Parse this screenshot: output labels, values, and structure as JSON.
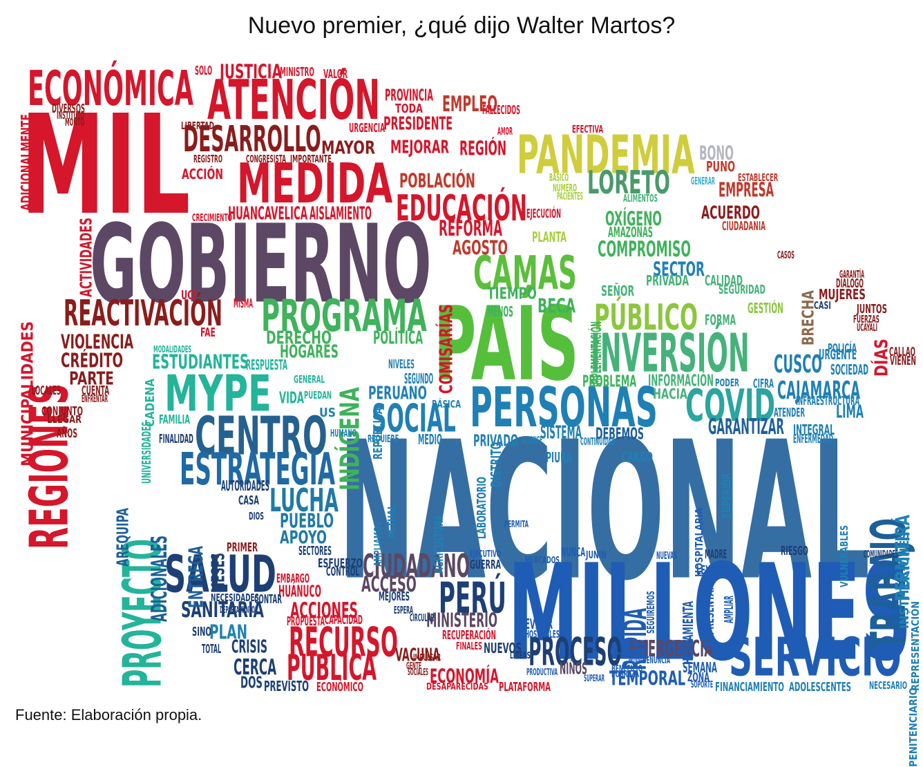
{
  "title": "Nuevo premier, ¿qué dijo Walter Martos?",
  "source": "Fuente: Elaboración propia.",
  "colors": {
    "red": "#d7142b",
    "darkred": "#8b1c1c",
    "purple": "#5b4763",
    "green": "#5bbf3b",
    "lime": "#a9cf3c",
    "olive": "#c9c93a",
    "teal": "#2bb89a",
    "blue": "#2f6ea8",
    "navy": "#1d3f75",
    "royal": "#1e5bb8"
  },
  "words": [
    {
      "t": "NACIONAL",
      "c": "#356ea3"
    },
    {
      "t": "MILLONES",
      "c": "#1f5cb5"
    },
    {
      "t": "GOBIERNO",
      "c": "#5c4764"
    },
    {
      "t": "MIL",
      "c": "#d5162b"
    },
    {
      "t": "PAÍS",
      "c": "#55bf3c"
    },
    {
      "t": "MEDIDA",
      "c": "#d5162b"
    },
    {
      "t": "ECONÓMICA",
      "c": "#d5162b"
    },
    {
      "t": "ATENCIÓN",
      "c": "#d5162b"
    },
    {
      "t": "PANDEMIA",
      "c": "#cfcd3c"
    },
    {
      "t": "PERSONAS",
      "c": "#1f80b5"
    },
    {
      "t": "INVERSIÓN",
      "c": "#45b27a"
    },
    {
      "t": "PROGRAMA",
      "c": "#3fb25b"
    },
    {
      "t": "MYPE",
      "c": "#23b49a"
    },
    {
      "t": "CENTRO",
      "c": "#24618f"
    },
    {
      "t": "ESTRATEGIA",
      "c": "#1f6aa5"
    },
    {
      "t": "SALUD",
      "c": "#1d3f75"
    },
    {
      "t": "SERVICIO",
      "c": "#1f5cb5"
    },
    {
      "t": "COVID",
      "c": "#2aa5a0"
    },
    {
      "t": "CAMAS",
      "c": "#5bbf3b"
    },
    {
      "t": "PÚBLICO",
      "c": "#8cc63f"
    },
    {
      "t": "REGIONES",
      "c": "#d5162b"
    },
    {
      "t": "DESARROLLO",
      "c": "#8b1c1c"
    },
    {
      "t": "EDUCACIÓN",
      "c": "#d5162b"
    },
    {
      "t": "REACTIVACIÓN",
      "c": "#8b1c1c"
    },
    {
      "t": "LORETO",
      "c": "#4a9a6b"
    },
    {
      "t": "SOCIAL",
      "c": "#1f80b5"
    },
    {
      "t": "PROYECTO",
      "c": "#23b49a"
    },
    {
      "t": "TRABAJO",
      "c": "#1d5f9a"
    },
    {
      "t": "PERÚ",
      "c": "#1d3f75"
    },
    {
      "t": "PROCESO",
      "c": "#1d3f75"
    },
    {
      "t": "RECURSO",
      "c": "#d5162b"
    },
    {
      "t": "PÚBLICA",
      "c": "#d5162b"
    },
    {
      "t": "LUCHA",
      "c": "#1f7aa5"
    },
    {
      "t": "CIUDADANO",
      "c": "#5c4764"
    },
    {
      "t": "CAJAMARCA",
      "c": "#1f80b5"
    },
    {
      "t": "EMERGENCIA",
      "c": "#5c4764"
    },
    {
      "t": "SANITARIA",
      "c": "#1d3f75"
    },
    {
      "t": "EMPRESA",
      "c": "#c0392b"
    },
    {
      "t": "CUSCO",
      "c": "#1f80b5"
    },
    {
      "t": "INDÍGENA",
      "c": "#3fb25b"
    },
    {
      "t": "PRESIDENTE",
      "c": "#d5162b"
    },
    {
      "t": "MAYOR",
      "c": "#8b1c1c"
    },
    {
      "t": "JUSTICIA",
      "c": "#d5162b"
    },
    {
      "t": "EMPLEO",
      "c": "#c0392b"
    },
    {
      "t": "POBLACIÓN",
      "c": "#c0392b"
    },
    {
      "t": "REFORMA",
      "c": "#d5162b"
    },
    {
      "t": "AGOSTO",
      "c": "#c0392b"
    },
    {
      "t": "COMISARÍAS",
      "c": "#d5162b"
    },
    {
      "t": "OXÍGENO",
      "c": "#3fb25b"
    },
    {
      "t": "COMPROMISO",
      "c": "#3fb25b"
    },
    {
      "t": "SECTOR",
      "c": "#1f80b5"
    },
    {
      "t": "BRECHA",
      "c": "#8a6a50"
    },
    {
      "t": "GARANTIZAR",
      "c": "#1d5f9a"
    },
    {
      "t": "LIMA",
      "c": "#1f80b5"
    },
    {
      "t": "PERMITIRÁ",
      "c": "#1f80b5"
    },
    {
      "t": "DERECHO",
      "c": "#3fb25b"
    },
    {
      "t": "HOGARES",
      "c": "#3fb25b"
    },
    {
      "t": "POLÍTICA",
      "c": "#3fb25b"
    },
    {
      "t": "ESTUDIANTES",
      "c": "#23b49a"
    },
    {
      "t": "PERUANO",
      "c": "#1f80b5"
    },
    {
      "t": "PUEBLO",
      "c": "#1f7aa5"
    },
    {
      "t": "APOYO",
      "c": "#1f7aa5"
    },
    {
      "t": "ENTREGA",
      "c": "#1d5f9a"
    },
    {
      "t": "MESES",
      "c": "#1d3f75"
    },
    {
      "t": "ADICIONALES",
      "c": "#1d5f9a"
    },
    {
      "t": "AREQUIPA",
      "c": "#1d5f9a"
    },
    {
      "t": "ACCIONES",
      "c": "#d5162b"
    },
    {
      "t": "HUÁNUCO",
      "c": "#d5162b"
    },
    {
      "t": "VACUNA",
      "c": "#8b1c1c"
    },
    {
      "t": "ECONOMÍA",
      "c": "#d5162b"
    },
    {
      "t": "MINISTERIO",
      "c": "#5c4764"
    },
    {
      "t": "ACCESO",
      "c": "#5c4764"
    },
    {
      "t": "RÁPIDA",
      "c": "#1f5cb5"
    },
    {
      "t": "TEMPORAL",
      "c": "#1f5cb5"
    },
    {
      "t": "NIÑOS",
      "c": "#5c4764"
    },
    {
      "t": "PLAN",
      "c": "#1f80b5"
    },
    {
      "t": "CRISIS",
      "c": "#1d3f75"
    },
    {
      "t": "CERCA",
      "c": "#1d3f75"
    },
    {
      "t": "VIOLENCIA",
      "c": "#8b1c1c"
    },
    {
      "t": "CRÉDITO",
      "c": "#8b1c1c"
    },
    {
      "t": "ACTIVIDADES",
      "c": "#d5162b"
    },
    {
      "t": "MUNICIPALIDADES",
      "c": "#d5162b"
    },
    {
      "t": "HUANCAVELICA",
      "c": "#d5162b"
    },
    {
      "t": "AISLAMIENTO",
      "c": "#d5162b"
    },
    {
      "t": "ACCIÓN",
      "c": "#d5162b"
    },
    {
      "t": "MEJORAR",
      "c": "#d5162b"
    },
    {
      "t": "REGIÓN",
      "c": "#d5162b"
    },
    {
      "t": "ADICIONALMENTE",
      "c": "#d5162b"
    },
    {
      "t": "BONO",
      "c": "#b6b6c0"
    },
    {
      "t": "PUNO",
      "c": "#c0392b"
    },
    {
      "t": "ACUERDO",
      "c": "#8b1c1c"
    },
    {
      "t": "BECA",
      "c": "#3fb25b"
    },
    {
      "t": "TIEMPO",
      "c": "#3fb25b"
    },
    {
      "t": "PLANTA",
      "c": "#a9cf3c"
    },
    {
      "t": "DÍAS",
      "c": "#d5162b"
    },
    {
      "t": "PARTE",
      "c": "#8b1c1c"
    },
    {
      "t": "PROBLEMA",
      "c": "#3fb25b"
    },
    {
      "t": "INFORMACIÓN",
      "c": "#45b27a"
    },
    {
      "t": "MUJERES",
      "c": "#8b1c1c"
    },
    {
      "t": "SISTEMA",
      "c": "#1f80b5"
    },
    {
      "t": "DEBEMOS",
      "c": "#1d5f9a"
    },
    {
      "t": "SEGURIDAD",
      "c": "#45b27a"
    },
    {
      "t": "GESTIÓN",
      "c": "#8cc63f"
    },
    {
      "t": "CALIDAD",
      "c": "#45b27a"
    },
    {
      "t": "PRIVADA",
      "c": "#45b27a"
    },
    {
      "t": "CIUDADANIA",
      "c": "#c0392b"
    },
    {
      "t": "AMAZONAS",
      "c": "#3fb25b"
    },
    {
      "t": "IMPLEMENTACIÓN",
      "c": "#3fb25b"
    },
    {
      "t": "HERRAMIENTA",
      "c": "#1f5cb5"
    },
    {
      "t": "INTEGRAL",
      "c": "#1f80b5"
    },
    {
      "t": "DOS",
      "c": "#1d3f75"
    },
    {
      "t": "PREVISTO",
      "c": "#1d3f75"
    },
    {
      "t": "ECONÓMICO",
      "c": "#d5162b"
    },
    {
      "t": "PLATAFORMA",
      "c": "#d5162b"
    },
    {
      "t": "NUEVOS",
      "c": "#1d3f75"
    },
    {
      "t": "EVITAR",
      "c": "#1f5cb5"
    },
    {
      "t": "FINANCIAMIENTO",
      "c": "#1f80b5"
    },
    {
      "t": "ADOLESCENTES",
      "c": "#1f80b5"
    },
    {
      "t": "SEMANA",
      "c": "#1f5cb5"
    },
    {
      "t": "ZONA",
      "c": "#1f5cb5"
    },
    {
      "t": "HACIA",
      "c": "#45b27a"
    },
    {
      "t": "FORMA",
      "c": "#45b27a"
    },
    {
      "t": "URGENTE",
      "c": "#1f80b5"
    },
    {
      "t": "SOCIEDAD",
      "c": "#1f80b5"
    },
    {
      "t": "INFRAESTRUCTURA",
      "c": "#1f80b5"
    },
    {
      "t": "FAMILIA",
      "c": "#23b49a"
    },
    {
      "t": "AUTORIDADES",
      "c": "#1d3f75"
    },
    {
      "t": "CASA",
      "c": "#1d3f75"
    },
    {
      "t": "PRIMER",
      "c": "#8b1c1c"
    },
    {
      "t": "CONTAR",
      "c": "#1d3f75"
    },
    {
      "t": "ESFUERZO",
      "c": "#1d3f75"
    },
    {
      "t": "CONTROL",
      "c": "#1d3f75"
    },
    {
      "t": "GUERRA",
      "c": "#1d3f75"
    },
    {
      "t": "MEJORES",
      "c": "#1d3f75"
    },
    {
      "t": "PROPUESTA",
      "c": "#d5162b"
    },
    {
      "t": "CAPACIDAD",
      "c": "#d5162b"
    },
    {
      "t": "EMBARGO",
      "c": "#d5162b"
    },
    {
      "t": "NECESIDADES",
      "c": "#1d3f75"
    },
    {
      "t": "TOTAL",
      "c": "#1d3f75"
    },
    {
      "t": "SINO",
      "c": "#1d3f75"
    },
    {
      "t": "CONJUNTO",
      "c": "#8b1c1c"
    },
    {
      "t": "LLEGAR",
      "c": "#8b1c1c"
    },
    {
      "t": "AÑOS",
      "c": "#8b1c1c"
    },
    {
      "t": "LOCALES",
      "c": "#8b1c1c"
    },
    {
      "t": "CUENTA",
      "c": "#8b1c1c"
    },
    {
      "t": "ENFRENTAR",
      "c": "#8b1c1c"
    },
    {
      "t": "MISMA",
      "c": "#d5162b"
    },
    {
      "t": "UCI",
      "c": "#d5162b"
    },
    {
      "t": "FAE",
      "c": "#d5162b"
    },
    {
      "t": "SOLO",
      "c": "#d5162b"
    },
    {
      "t": "MINISTRO",
      "c": "#d5162b"
    },
    {
      "t": "VALOR",
      "c": "#d5162b"
    },
    {
      "t": "PROVINCIA",
      "c": "#d5162b"
    },
    {
      "t": "TODA",
      "c": "#d5162b"
    },
    {
      "t": "URGENCIA",
      "c": "#d5162b"
    },
    {
      "t": "CRECIMIENTO",
      "c": "#d5162b"
    },
    {
      "t": "FALLECIDOS",
      "c": "#d5162b"
    },
    {
      "t": "CIFRA",
      "c": "#1f80b5"
    },
    {
      "t": "PODER",
      "c": "#1f80b5"
    },
    {
      "t": "RIESGO",
      "c": "#1d3f75"
    },
    {
      "t": "MADRE",
      "c": "#1d3f75"
    },
    {
      "t": "JUNTOS",
      "c": "#8b1c1c"
    },
    {
      "t": "CASOS",
      "c": "#8b1c1c"
    },
    {
      "t": "SEÑOR",
      "c": "#45b27a"
    },
    {
      "t": "MENOS",
      "c": "#3fb25b"
    },
    {
      "t": "PRIVADO",
      "c": "#1f80b5"
    },
    {
      "t": "MEDIO",
      "c": "#1f80b5"
    },
    {
      "t": "SEGUNDO",
      "c": "#1f80b5"
    },
    {
      "t": "NIVELES",
      "c": "#1f80b5"
    },
    {
      "t": "US",
      "c": "#1f80b5"
    },
    {
      "t": "VIDA",
      "c": "#23b49a"
    },
    {
      "t": "RESPUESTA",
      "c": "#23b49a"
    },
    {
      "t": "FINALIDAD",
      "c": "#1d3f75"
    },
    {
      "t": "DIOS",
      "c": "#1d3f75"
    },
    {
      "t": "SECTORES",
      "c": "#1d3f75"
    },
    {
      "t": "PIURA",
      "c": "#1f80b5"
    },
    {
      "t": "CARGO",
      "c": "#1f80b5"
    },
    {
      "t": "ATENDER",
      "c": "#1f80b5"
    },
    {
      "t": "NUNCA",
      "c": "#1f5cb5"
    },
    {
      "t": "PERMITA",
      "c": "#1f5cb5"
    },
    {
      "t": "REPRESENTAN",
      "c": "#1f5cb5"
    },
    {
      "t": "LEY",
      "c": "#1f5cb5"
    },
    {
      "t": "AMPLIAR",
      "c": "#1f5cb5"
    },
    {
      "t": "NUEVAS",
      "c": "#1f5cb5"
    },
    {
      "t": "JUNIN",
      "c": "#1f5cb5"
    },
    {
      "t": "SEGUIREMOS",
      "c": "#1f5cb5"
    },
    {
      "t": "DESAPARECIDAS",
      "c": "#d5162b"
    },
    {
      "t": "ESTABLECER",
      "c": "#c0392b"
    },
    {
      "t": "HOSPITALARIA",
      "c": "#1f5cb5"
    },
    {
      "t": "REPRESENTACIÓN",
      "c": "#1f80b5"
    },
    {
      "t": "INSTITUCIONES",
      "c": "#1f80b5"
    },
    {
      "t": "PENITENCIARIO",
      "c": "#1f80b5"
    },
    {
      "t": "NECESARIO",
      "c": "#1f80b5"
    },
    {
      "t": "VULNERABLES",
      "c": "#1f80b5"
    },
    {
      "t": "SUPERIOR",
      "c": "#1f80b5"
    },
    {
      "t": "CALLAO",
      "c": "#8b1c1c"
    },
    {
      "t": "VIENEN",
      "c": "#8b1c1c"
    },
    {
      "t": "POLICÍA",
      "c": "#1f80b5"
    },
    {
      "t": "DIÁLOGO",
      "c": "#8b1c1c"
    },
    {
      "t": "GARANTÍA",
      "c": "#8b1c1c"
    },
    {
      "t": "COMUNIDADES",
      "c": "#1d3f75"
    },
    {
      "t": "EJECUCIÓN",
      "c": "#d5162b"
    },
    {
      "t": "DIVERSOS",
      "c": "#8b1c1c"
    },
    {
      "t": "INSTITUTO",
      "c": "#8b1c1c"
    },
    {
      "t": "MONTO",
      "c": "#8b1c1c"
    },
    {
      "t": "LIBERTAD",
      "c": "#8b1c1c"
    },
    {
      "t": "REGISTRO",
      "c": "#8b1c1c"
    },
    {
      "t": "CONGRESISTA",
      "c": "#8b1c1c"
    },
    {
      "t": "IMPORTANTE",
      "c": "#8b1c1c"
    },
    {
      "t": "ALIMENTOS",
      "c": "#45b27a"
    },
    {
      "t": "PACIENTES",
      "c": "#a9cf3c"
    },
    {
      "t": "NÚMERO",
      "c": "#a9cf3c"
    },
    {
      "t": "BÁSICO",
      "c": "#a9cf3c"
    },
    {
      "t": "GENERAR",
      "c": "#3bb0c9"
    },
    {
      "t": "EFECTIVA",
      "c": "#d5162b"
    },
    {
      "t": "AMOR",
      "c": "#d5162b"
    },
    {
      "t": "CASI",
      "c": "#1d3f75"
    },
    {
      "t": "FUERZAS",
      "c": "#8b1c1c"
    },
    {
      "t": "UCAYALI",
      "c": "#8b1c1c"
    },
    {
      "t": "ESPERA",
      "c": "#1d3f75"
    },
    {
      "t": "CIRCULAR",
      "c": "#1d3f75"
    },
    {
      "t": "SUPERAR",
      "c": "#1f5cb5"
    },
    {
      "t": "BENEFICIO",
      "c": "#1f5cb5"
    },
    {
      "t": "POBREZA",
      "c": "#1f5cb5"
    },
    {
      "t": "DENUNCIA",
      "c": "#1f5cb5"
    },
    {
      "t": "PROVISIÓN",
      "c": "#1f5cb5"
    },
    {
      "t": "SOPORTE",
      "c": "#1f5cb5"
    },
    {
      "t": "DEPARTAMENTOS",
      "c": "#1d3f75"
    },
    {
      "t": "ENFERMEDAD",
      "c": "#1f80b5"
    },
    {
      "t": "ALCANCE",
      "c": "#1f80b5"
    },
    {
      "t": "CONTINUIDAD",
      "c": "#1f80b5"
    },
    {
      "t": "DISTRITO",
      "c": "#1f80b5"
    },
    {
      "t": "LABORATORIO",
      "c": "#1f80b5"
    },
    {
      "t": "AGRICULTURA",
      "c": "#1f80b5"
    },
    {
      "t": "ACTUAL",
      "c": "#1f80b5"
    },
    {
      "t": "AMPLIAMOS",
      "c": "#1f80b5"
    },
    {
      "t": "HUMANO",
      "c": "#1f80b5"
    },
    {
      "t": "REQUIERE",
      "c": "#1f80b5"
    },
    {
      "t": "REPÚBLICA",
      "c": "#1f80b5"
    },
    {
      "t": "BÁSICA",
      "c": "#1f80b5"
    },
    {
      "t": "GENERAL",
      "c": "#23b49a"
    },
    {
      "t": "PUEDAN",
      "c": "#23b49a"
    },
    {
      "t": "CADENA",
      "c": "#23b49a"
    },
    {
      "t": "UNIVERSIDADES",
      "c": "#23b49a"
    },
    {
      "t": "MODALIDADES",
      "c": "#23b49a"
    },
    {
      "t": "RECUPERACIÓN",
      "c": "#d5162b"
    },
    {
      "t": "FINALES",
      "c": "#d5162b"
    },
    {
      "t": "IMPULSAR",
      "c": "#8b1c1c"
    },
    {
      "t": "SOCIALES",
      "c": "#8b1c1c"
    },
    {
      "t": "GENTE",
      "c": "#8b1c1c"
    },
    {
      "t": "LÍNEAS",
      "c": "#1d3f75"
    },
    {
      "t": "HOSPITALES",
      "c": "#1f5cb5"
    },
    {
      "t": "PRODUCTIVA",
      "c": "#1f5cb5"
    },
    {
      "t": "MERCADOS",
      "c": "#1f5cb5"
    },
    {
      "t": "EJECUTIVO",
      "c": "#1f5cb5"
    }
  ]
}
